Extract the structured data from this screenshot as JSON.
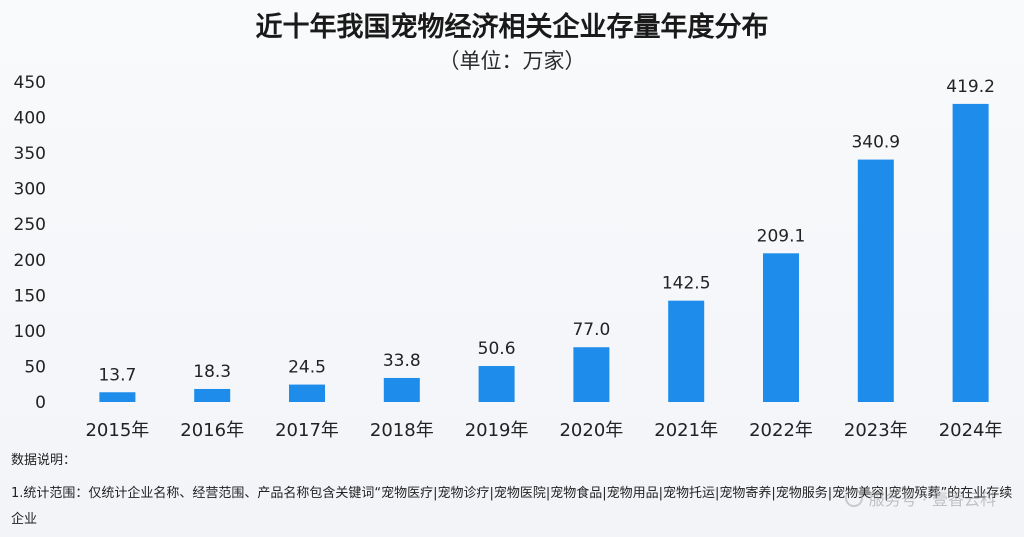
{
  "chart_data": {
    "type": "bar",
    "title": "近十年我国宠物经济相关企业存量年度分布",
    "subtitle": "（单位：万家）",
    "categories": [
      "2015年",
      "2016年",
      "2017年",
      "2018年",
      "2019年",
      "2020年",
      "2021年",
      "2022年",
      "2023年",
      "2024年"
    ],
    "values": [
      13.7,
      18.3,
      24.5,
      33.8,
      50.6,
      77.0,
      142.5,
      209.1,
      340.9,
      419.2
    ],
    "value_labels": [
      "13.7",
      "18.3",
      "24.5",
      "33.8",
      "50.6",
      "77.0",
      "142.5",
      "209.1",
      "340.9",
      "419.2"
    ],
    "yticks": [
      0,
      50,
      100,
      150,
      200,
      250,
      300,
      350,
      400,
      450
    ],
    "ylim": [
      0,
      450
    ],
    "xlabel": "",
    "ylabel": "",
    "grid": false,
    "bar_color": "#1d8cea"
  },
  "notes": {
    "heading": "数据说明：",
    "body": "1.统计范围：仅统计企业名称、经营范围、产品名称包含关键词“宠物医疗|宠物诊疗|宠物医院|宠物食品|宠物用品|宠物托运|宠物寄养|宠物服务|宠物美容|宠物殡葬”的在业存续企业"
  },
  "watermark": {
    "text": "服务号 · 壹香云科"
  }
}
